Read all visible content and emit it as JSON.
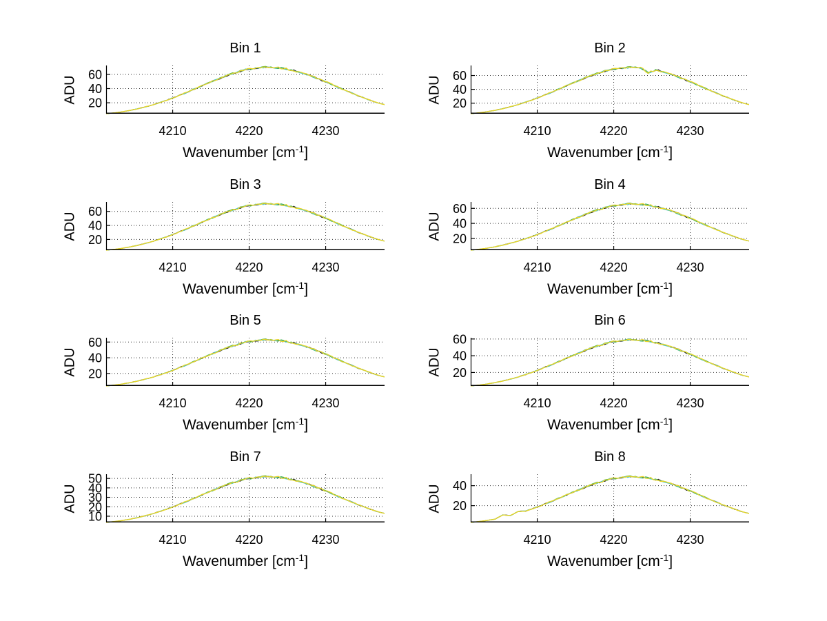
{
  "figure": {
    "background": "#ffffff"
  },
  "labels": {
    "ylabel": "ADU",
    "xlabel_base": "Wavenumber [cm",
    "xlabel_sup": "-1",
    "xlabel_close": "]"
  },
  "axes_style": {
    "xlabel_full": "Wavenumber [cm^-1]",
    "xlim": [
      4201.3,
      4237.7
    ],
    "xticks": [
      4210,
      4220,
      4230
    ],
    "grid": "dotted",
    "grid_color": "#333333",
    "spine_color": "#000000",
    "tick_label_color": "#000000",
    "curve_color": "#e8d428",
    "under_colors": [
      "#1a1a1a",
      "#3fae49",
      "#49c6c2"
    ]
  },
  "chart_data": [
    {
      "type": "line",
      "title": "Bin 1",
      "ylabel": "ADU",
      "yticks": [
        20,
        40,
        60
      ],
      "ylim": [
        4.6,
        72.5
      ],
      "x": [
        4201.3,
        4202.5,
        4203.5,
        4204.5,
        4205.5,
        4206.5,
        4207.5,
        4208.5,
        4209.5,
        4210.5,
        4211.5,
        4212.5,
        4213.5,
        4214.5,
        4215.5,
        4216.5,
        4217.5,
        4218.5,
        4219.5,
        4220.5,
        4221.5,
        4222.5,
        4223.5,
        4224.5,
        4225.5,
        4226.5,
        4227.5,
        4228.5,
        4229.5,
        4230.5,
        4231.5,
        4232.5,
        4233.5,
        4234.5,
        4235.5,
        4236.5,
        4237.7
      ],
      "y": [
        4.6,
        5.9,
        7.5,
        9.5,
        11.8,
        14.4,
        17.5,
        20.9,
        24.7,
        28.8,
        33.2,
        37.8,
        42.5,
        47.2,
        51.9,
        55.6,
        60.3,
        63.2,
        66.5,
        68.1,
        69.9,
        70.3,
        69.4,
        68.6,
        66.0,
        63.6,
        59.8,
        56.2,
        51.5,
        47.3,
        42.4,
        37.8,
        33.2,
        28.8,
        24.7,
        20.9,
        17.5
      ]
    },
    {
      "type": "line",
      "title": "Bin 2",
      "ylabel": "ADU",
      "yticks": [
        20,
        40,
        60
      ],
      "ylim": [
        4.7,
        74.5
      ],
      "x": [
        4201.3,
        4202.5,
        4203.5,
        4204.5,
        4205.5,
        4206.5,
        4207.5,
        4208.5,
        4209.5,
        4210.5,
        4211.5,
        4212.5,
        4213.5,
        4214.5,
        4215.5,
        4216.5,
        4217.5,
        4218.5,
        4219.5,
        4220.5,
        4221.5,
        4222.5,
        4223.5,
        4224.5,
        4225.5,
        4226.5,
        4227.5,
        4228.5,
        4229.5,
        4230.5,
        4231.5,
        4232.5,
        4233.5,
        4234.5,
        4235.5,
        4236.5,
        4237.7
      ],
      "y": [
        4.7,
        6.1,
        7.8,
        9.7,
        12.1,
        14.8,
        18.0,
        21.5,
        25.4,
        29.6,
        34.1,
        38.8,
        43.7,
        48.5,
        53.2,
        57.7,
        61.7,
        65.4,
        67.9,
        70.4,
        71.4,
        72.2,
        71.5,
        64.0,
        68.0,
        65.5,
        61.5,
        57.9,
        53.0,
        48.6,
        43.6,
        38.8,
        34.1,
        29.6,
        25.4,
        21.5,
        18.0
      ]
    },
    {
      "type": "line",
      "title": "Bin 3",
      "ylabel": "ADU",
      "yticks": [
        20,
        40,
        60
      ],
      "ylim": [
        4.7,
        73.5
      ],
      "x": [
        4201.3,
        4202.5,
        4203.5,
        4204.5,
        4205.5,
        4206.5,
        4207.5,
        4208.5,
        4209.5,
        4210.5,
        4211.5,
        4212.5,
        4213.5,
        4214.5,
        4215.5,
        4216.5,
        4217.5,
        4218.5,
        4219.5,
        4220.5,
        4221.5,
        4222.5,
        4223.5,
        4224.5,
        4225.5,
        4226.5,
        4227.5,
        4228.5,
        4229.5,
        4230.5,
        4231.5,
        4232.5,
        4233.5,
        4234.5,
        4235.5,
        4236.5,
        4237.7
      ],
      "y": [
        4.7,
        6.0,
        7.6,
        9.6,
        11.9,
        14.6,
        17.7,
        21.2,
        25.0,
        29.2,
        33.6,
        38.3,
        43.1,
        47.8,
        52.5,
        56.8,
        61.0,
        64.1,
        67.4,
        69.1,
        70.8,
        71.2,
        70.4,
        69.5,
        67.0,
        64.5,
        60.6,
        56.9,
        52.4,
        47.9,
        43.0,
        38.3,
        33.6,
        29.2,
        25.0,
        21.2,
        17.7
      ]
    },
    {
      "type": "line",
      "title": "Bin 4",
      "ylabel": "ADU",
      "yticks": [
        20,
        40,
        60
      ],
      "ylim": [
        4.3,
        68.5
      ],
      "x": [
        4201.3,
        4202.5,
        4203.5,
        4204.5,
        4205.5,
        4206.5,
        4207.5,
        4208.5,
        4209.5,
        4210.5,
        4211.5,
        4212.5,
        4213.5,
        4214.5,
        4215.5,
        4216.5,
        4217.5,
        4218.5,
        4219.5,
        4220.5,
        4221.5,
        4222.5,
        4223.5,
        4224.5,
        4225.5,
        4226.5,
        4227.5,
        4228.5,
        4229.5,
        4230.5,
        4231.5,
        4232.5,
        4233.5,
        4234.5,
        4235.5,
        4236.5,
        4237.7
      ],
      "y": [
        4.3,
        5.6,
        7.1,
        8.9,
        11.1,
        13.6,
        16.5,
        19.7,
        23.3,
        27.1,
        31.3,
        35.6,
        40.0,
        44.5,
        48.8,
        52.8,
        56.8,
        59.6,
        62.6,
        64.2,
        65.8,
        66.1,
        65.4,
        64.6,
        62.2,
        59.9,
        56.5,
        52.9,
        48.7,
        44.6,
        39.9,
        35.6,
        31.3,
        27.1,
        23.3,
        19.7,
        16.5
      ]
    },
    {
      "type": "line",
      "title": "Bin 5",
      "ylabel": "ADU",
      "yticks": [
        20,
        40,
        60
      ],
      "ylim": [
        4.1,
        65.5
      ],
      "x": [
        4201.3,
        4202.5,
        4203.5,
        4204.5,
        4205.5,
        4206.5,
        4207.5,
        4208.5,
        4209.5,
        4210.5,
        4211.5,
        4212.5,
        4213.5,
        4214.5,
        4215.5,
        4216.5,
        4217.5,
        4218.5,
        4219.5,
        4220.5,
        4221.5,
        4222.5,
        4223.5,
        4224.5,
        4225.5,
        4226.5,
        4227.5,
        4228.5,
        4229.5,
        4230.5,
        4231.5,
        4232.5,
        4233.5,
        4234.5,
        4235.5,
        4236.5,
        4237.7
      ],
      "y": [
        4.1,
        5.3,
        6.8,
        8.5,
        10.6,
        13.0,
        15.7,
        18.8,
        22.2,
        25.9,
        29.8,
        34.0,
        38.2,
        42.4,
        46.6,
        50.4,
        54.2,
        56.9,
        59.8,
        61.3,
        62.8,
        63.1,
        62.4,
        61.7,
        59.4,
        57.2,
        53.8,
        50.5,
        46.5,
        42.5,
        38.1,
        34.0,
        29.8,
        25.9,
        22.2,
        18.8,
        15.7
      ]
    },
    {
      "type": "line",
      "title": "Bin 6",
      "ylabel": "ADU",
      "yticks": [
        20,
        40,
        60
      ],
      "ylim": [
        3.9,
        61.5
      ],
      "x": [
        4201.3,
        4202.5,
        4203.5,
        4204.5,
        4205.5,
        4206.5,
        4207.5,
        4208.5,
        4209.5,
        4210.5,
        4211.5,
        4212.5,
        4213.5,
        4214.5,
        4215.5,
        4216.5,
        4217.5,
        4218.5,
        4219.5,
        4220.5,
        4221.5,
        4222.5,
        4223.5,
        4224.5,
        4225.5,
        4226.5,
        4227.5,
        4228.5,
        4229.5,
        4230.5,
        4231.5,
        4232.5,
        4233.5,
        4234.5,
        4235.5,
        4236.5,
        4237.7
      ],
      "y": [
        3.9,
        5.0,
        6.4,
        8.0,
        9.9,
        12.1,
        14.7,
        17.6,
        20.8,
        24.3,
        28.0,
        31.8,
        35.8,
        39.7,
        43.6,
        47.2,
        50.8,
        53.2,
        56.0,
        57.4,
        58.8,
        59.2,
        58.4,
        57.8,
        55.6,
        53.6,
        50.4,
        47.3,
        43.5,
        39.8,
        35.7,
        31.8,
        28.0,
        24.3,
        20.8,
        17.6,
        14.7
      ]
    },
    {
      "type": "line",
      "title": "Bin 7",
      "ylabel": "ADU",
      "yticks": [
        10,
        20,
        30,
        40,
        50
      ],
      "ylim": [
        3.4,
        54.5
      ],
      "x": [
        4201.3,
        4202.5,
        4203.5,
        4204.5,
        4205.5,
        4206.5,
        4207.5,
        4208.5,
        4209.5,
        4210.5,
        4211.5,
        4212.5,
        4213.5,
        4214.5,
        4215.5,
        4216.5,
        4217.5,
        4218.5,
        4219.5,
        4220.5,
        4221.5,
        4222.5,
        4223.5,
        4224.5,
        4225.5,
        4226.5,
        4227.5,
        4228.5,
        4229.5,
        4230.5,
        4231.5,
        4232.5,
        4233.5,
        4234.5,
        4235.5,
        4236.5,
        4237.7
      ],
      "y": [
        3.4,
        4.4,
        5.6,
        7.0,
        8.7,
        10.7,
        13.0,
        15.5,
        18.3,
        21.4,
        24.6,
        28.0,
        31.5,
        35.0,
        38.4,
        41.6,
        44.8,
        46.9,
        49.4,
        50.5,
        51.9,
        52.2,
        51.5,
        50.9,
        48.9,
        47.3,
        44.4,
        41.7,
        38.3,
        35.1,
        31.4,
        28.0,
        24.6,
        21.4,
        18.3,
        15.5,
        13.0
      ]
    },
    {
      "type": "line",
      "title": "Bin 8",
      "ylabel": "ADU",
      "yticks": [
        20,
        40
      ],
      "ylim": [
        3.2,
        51.5
      ],
      "x": [
        4201.3,
        4202.5,
        4203.5,
        4204.5,
        4205.5,
        4206.5,
        4207.5,
        4208.5,
        4209.5,
        4210.5,
        4211.5,
        4212.5,
        4213.5,
        4214.5,
        4215.5,
        4216.5,
        4217.5,
        4218.5,
        4219.5,
        4220.5,
        4221.5,
        4222.5,
        4223.5,
        4224.5,
        4225.5,
        4226.5,
        4227.5,
        4228.5,
        4229.5,
        4230.5,
        4231.5,
        4232.5,
        4233.5,
        4234.5,
        4235.5,
        4236.5,
        4237.7
      ],
      "y": [
        3.2,
        4.2,
        5.3,
        6.6,
        10.8,
        10.1,
        14.3,
        14.6,
        17.3,
        20.1,
        23.2,
        26.4,
        29.7,
        33.0,
        36.2,
        39.2,
        42.2,
        44.2,
        46.6,
        47.6,
        49.0,
        49.2,
        48.5,
        48.0,
        46.1,
        44.5,
        41.8,
        39.3,
        36.0,
        33.1,
        29.7,
        26.4,
        23.2,
        20.1,
        17.3,
        14.6,
        12.2
      ]
    }
  ]
}
